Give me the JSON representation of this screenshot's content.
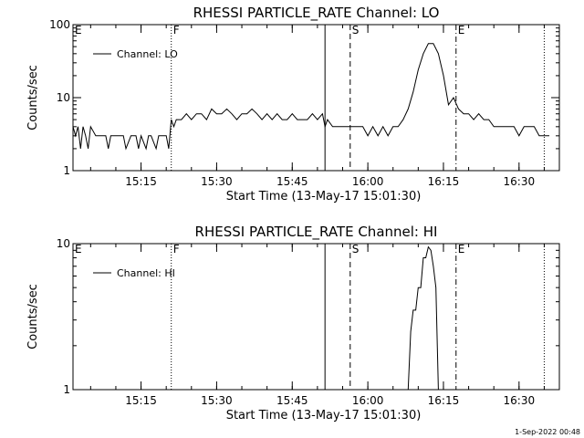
{
  "footer": {
    "timestamp": "1-Sep-2022 00:48"
  },
  "chart_data": [
    {
      "type": "line",
      "title": "RHESSI PARTICLE_RATE Channel: LO",
      "xlabel": "Start Time (13-May-17 15:01:30)",
      "ylabel": "Counts/sec",
      "yscale": "log",
      "xlim": [
        "15:01:30",
        "16:38:00"
      ],
      "ylim": [
        1,
        100
      ],
      "x_ticks": [
        "15:15",
        "15:30",
        "15:45",
        "16:00",
        "16:15",
        "16:30"
      ],
      "y_ticks": [
        "1",
        "10",
        "100"
      ],
      "legend": {
        "label": "Channel: LO",
        "placement": "top-left"
      },
      "markers": [
        {
          "label": "E",
          "time": "15:01:30",
          "style": "none"
        },
        {
          "label": "F",
          "time": "15:21:00",
          "style": "dotted"
        },
        {
          "label": "",
          "time": "15:51:30",
          "style": "solid"
        },
        {
          "label": "S",
          "time": "15:56:30",
          "style": "dashed"
        },
        {
          "label": "E",
          "time": "16:17:30",
          "style": "dashdot"
        },
        {
          "label": "",
          "time": "16:35:00",
          "style": "dotted"
        }
      ],
      "series": [
        {
          "name": "Channel: LO",
          "x": [
            "15:01:30",
            "15:02:00",
            "15:02:30",
            "15:03:00",
            "15:03:30",
            "15:04:00",
            "15:04:30",
            "15:05:00",
            "15:06:00",
            "15:07:00",
            "15:08:00",
            "15:08:30",
            "15:09:00",
            "15:10:00",
            "15:11:00",
            "15:11:30",
            "15:12:00",
            "15:13:00",
            "15:14:00",
            "15:14:30",
            "15:15:00",
            "15:16:00",
            "15:16:30",
            "15:17:00",
            "15:18:00",
            "15:18:30",
            "15:19:00",
            "15:20:00",
            "15:20:30",
            "15:21:00",
            "15:21:30",
            "15:22:00",
            "15:23:00",
            "15:24:00",
            "15:25:00",
            "15:26:00",
            "15:27:00",
            "15:28:00",
            "15:29:00",
            "15:30:00",
            "15:31:00",
            "15:32:00",
            "15:33:00",
            "15:34:00",
            "15:35:00",
            "15:36:00",
            "15:37:00",
            "15:38:00",
            "15:39:00",
            "15:40:00",
            "15:41:00",
            "15:42:00",
            "15:43:00",
            "15:44:00",
            "15:45:00",
            "15:46:00",
            "15:47:00",
            "15:48:00",
            "15:49:00",
            "15:50:00",
            "15:51:00",
            "15:51:30",
            "15:52:00",
            "15:53:00",
            "15:54:00",
            "15:55:00",
            "15:56:00",
            "15:57:00",
            "15:58:00",
            "15:59:00",
            "16:00:00",
            "16:01:00",
            "16:02:00",
            "16:03:00",
            "16:04:00",
            "16:05:00",
            "16:06:00",
            "16:07:00",
            "16:08:00",
            "16:09:00",
            "16:10:00",
            "16:11:00",
            "16:12:00",
            "16:13:00",
            "16:14:00",
            "16:15:00",
            "16:16:00",
            "16:17:00",
            "16:18:00",
            "16:19:00",
            "16:20:00",
            "16:21:00",
            "16:22:00",
            "16:23:00",
            "16:24:00",
            "16:25:00",
            "16:26:00",
            "16:27:00",
            "16:28:00",
            "16:29:00",
            "16:30:00",
            "16:31:00",
            "16:32:00",
            "16:33:00",
            "16:34:00",
            "16:35:00",
            "16:36:00"
          ],
          "y": [
            4,
            3,
            4,
            2,
            4,
            3,
            2,
            4,
            3,
            3,
            3,
            2,
            3,
            3,
            3,
            3,
            2,
            3,
            3,
            2,
            3,
            2,
            3,
            3,
            2,
            3,
            3,
            3,
            2,
            5,
            4,
            5,
            5,
            6,
            5,
            6,
            6,
            5,
            7,
            6,
            6,
            7,
            6,
            5,
            6,
            6,
            7,
            6,
            5,
            6,
            5,
            6,
            5,
            5,
            6,
            5,
            5,
            5,
            6,
            5,
            6,
            4,
            5,
            4,
            4,
            4,
            4,
            4,
            4,
            4,
            3,
            4,
            3,
            4,
            3,
            4,
            4,
            5,
            7,
            12,
            24,
            40,
            55,
            55,
            40,
            20,
            8,
            10,
            7,
            6,
            6,
            5,
            6,
            5,
            5,
            4,
            4,
            4,
            4,
            4,
            3,
            4,
            4,
            4,
            3,
            3,
            3
          ]
        }
      ]
    },
    {
      "type": "line",
      "title": "RHESSI PARTICLE_RATE Channel: HI",
      "xlabel": "Start Time (13-May-17 15:01:30)",
      "ylabel": "Counts/sec",
      "yscale": "log",
      "xlim": [
        "15:01:30",
        "16:38:00"
      ],
      "ylim": [
        1,
        10
      ],
      "x_ticks": [
        "15:15",
        "15:30",
        "15:45",
        "16:00",
        "16:15",
        "16:30"
      ],
      "y_ticks": [
        "1",
        "10"
      ],
      "legend": {
        "label": "Channel: HI",
        "placement": "top-left"
      },
      "markers": [
        {
          "label": "E",
          "time": "15:01:30",
          "style": "none"
        },
        {
          "label": "F",
          "time": "15:21:00",
          "style": "dotted"
        },
        {
          "label": "",
          "time": "15:51:30",
          "style": "solid"
        },
        {
          "label": "S",
          "time": "15:56:30",
          "style": "dashed"
        },
        {
          "label": "E",
          "time": "16:17:30",
          "style": "dashdot"
        },
        {
          "label": "",
          "time": "16:35:00",
          "style": "dotted"
        }
      ],
      "series": [
        {
          "name": "Channel: HI",
          "x": [
            "16:08:00",
            "16:08:30",
            "16:09:00",
            "16:09:30",
            "16:10:00",
            "16:10:30",
            "16:11:00",
            "16:11:30",
            "16:12:00",
            "16:12:30",
            "16:13:00",
            "16:13:30",
            "16:14:00"
          ],
          "y": [
            1,
            2.5,
            3.5,
            3.5,
            5,
            5,
            8,
            8,
            9.5,
            9,
            7,
            5,
            1
          ]
        }
      ]
    }
  ]
}
